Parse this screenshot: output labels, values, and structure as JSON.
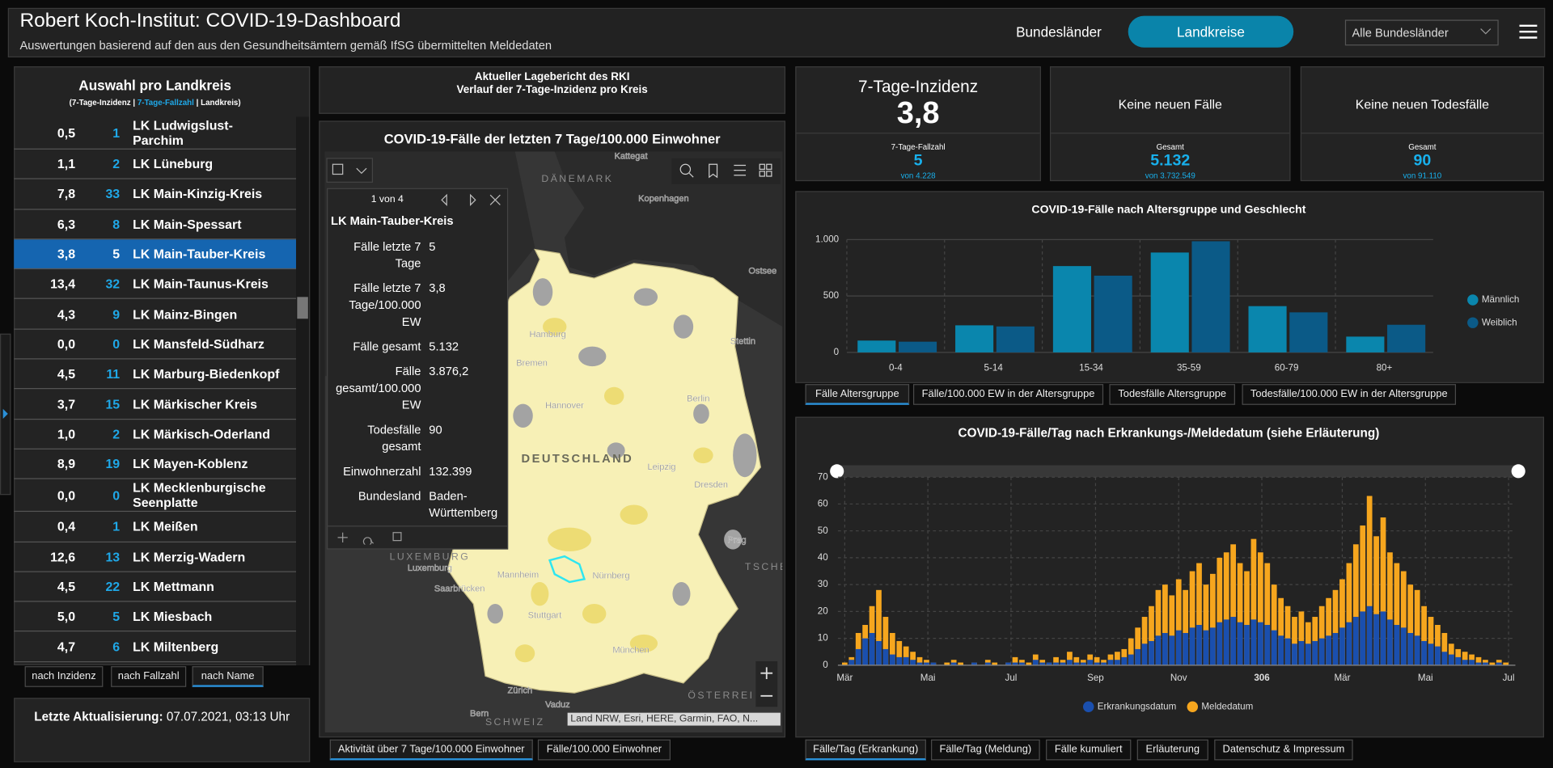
{
  "header": {
    "title": "Robert Koch-Institut: COVID-19-Dashboard",
    "subtitle": "Auswertungen basierend auf den aus den Gesundheitsämtern gemäß IfSG übermittelten Meldedaten",
    "tabs": [
      "Bundesländer",
      "Landkreise"
    ],
    "active_tab": 1,
    "dropdown": "Alle Bundesländer"
  },
  "district_list": {
    "title": "Auswahl pro Landkreis",
    "legend": [
      "(7-Tage-Inzidenz |",
      "7-Tage-Fallzahl",
      "| Landkreis)"
    ],
    "rows": [
      [
        "0,5",
        "1",
        "LK Ludwigslust-Parchim"
      ],
      [
        "1,1",
        "2",
        "LK Lüneburg"
      ],
      [
        "7,8",
        "33",
        "LK Main-Kinzig-Kreis"
      ],
      [
        "6,3",
        "8",
        "LK Main-Spessart"
      ],
      [
        "3,8",
        "5",
        "LK Main-Tauber-Kreis"
      ],
      [
        "13,4",
        "32",
        "LK Main-Taunus-Kreis"
      ],
      [
        "4,3",
        "9",
        "LK Mainz-Bingen"
      ],
      [
        "0,0",
        "0",
        "LK Mansfeld-Südharz"
      ],
      [
        "4,5",
        "11",
        "LK Marburg-Biedenkopf"
      ],
      [
        "3,7",
        "15",
        "LK Märkischer Kreis"
      ],
      [
        "1,0",
        "2",
        "LK Märkisch-Oderland"
      ],
      [
        "8,9",
        "19",
        "LK Mayen-Koblenz"
      ],
      [
        "0,0",
        "0",
        "LK Mecklenburgische Seenplatte"
      ],
      [
        "0,4",
        "1",
        "LK Meißen"
      ],
      [
        "12,6",
        "13",
        "LK Merzig-Wadern"
      ],
      [
        "4,5",
        "22",
        "LK Mettmann"
      ],
      [
        "5,0",
        "5",
        "LK Miesbach"
      ],
      [
        "4,7",
        "6",
        "LK Miltenberg"
      ]
    ],
    "selected_row": 4,
    "sort_buttons": [
      "nach Inzidenz",
      "nach Fallzahl",
      "nach Name"
    ],
    "active_sort": 2
  },
  "update": {
    "label": "Letzte Aktualisierung:",
    "value": "07.07.2021, 03:13 Uhr"
  },
  "report": {
    "lines": [
      "Aktueller Lagebericht des RKI",
      "Verlauf der 7-Tage-Inzidenz pro Kreis"
    ]
  },
  "map": {
    "title": "COVID-19-Fälle der letzten 7 Tage/100.000 Einwohner",
    "labels": [
      "Kattegat",
      "DÄNEMARK",
      "Kopenhagen",
      "Ostsee",
      "Hamburg",
      "Bremen",
      "Hannover",
      "Stettin",
      "Berlin",
      "DEUTSCHLAND",
      "Leipzig",
      "Dresden",
      "Prag",
      "TSCHE",
      "LUXEMBURG",
      "Luxemburg",
      "Saarbrücken",
      "Mannheim",
      "Nürnberg",
      "Stuttgart",
      "München",
      "ÖSTERREI",
      "Zürich",
      "Vaduz",
      "Bern",
      "SCHWEIZ"
    ],
    "popup": {
      "pager": "1 von 4",
      "title": "LK Main-Tauber-Kreis",
      "fields": [
        [
          "Fälle letzte 7 Tage",
          "5"
        ],
        [
          "Fälle letzte 7 Tage/100.000 EW",
          "3,8"
        ],
        [
          "Fälle gesamt",
          "5.132"
        ],
        [
          "Fälle gesamt/100.000 EW",
          "3.876,2"
        ],
        [
          "Todesfälle gesamt",
          "90"
        ],
        [
          "Einwohnerzahl",
          "132.399"
        ],
        [
          "Bundesland",
          "Baden-Württemberg"
        ]
      ]
    },
    "attribution": "Land NRW, Esri, HERE, Garmin, FAO, N...",
    "tabs": [
      "Aktivität über 7 Tage/100.000 Einwohner",
      "Fälle/100.000 Einwohner"
    ],
    "active_tab": 0
  },
  "kpis": [
    {
      "title": "7-Tage-Inzidenz",
      "value": "3,8",
      "sub_label": "7-Tage-Fallzahl",
      "sub_value": "5",
      "sub_total": "von 4.228"
    },
    {
      "title": "Keine neuen Fälle",
      "sub_label": "Gesamt",
      "sub_value": "5.132",
      "sub_total": "von 3.732.549"
    },
    {
      "title": "Keine neuen Todesfälle",
      "sub_label": "Gesamt",
      "sub_value": "90",
      "sub_total": "von 91.110"
    }
  ],
  "age_chart_tabs": {
    "tabs": [
      "Fälle Altersgruppe",
      "Fälle/100.000 EW in der Altersgruppe",
      "Todesfälle Altersgruppe",
      "Todesfälle/100.000 EW in der Altersgruppe"
    ],
    "active_tab": 0
  },
  "daily_chart_tabs": {
    "tabs": [
      "Fälle/Tag (Erkrankung)",
      "Fälle/Tag (Meldung)",
      "Fälle kumuliert",
      "Erläuterung",
      "Datenschutz & Impressum"
    ],
    "active_tab": 0
  },
  "chart_data": [
    {
      "type": "bar",
      "title": "COVID-19-Fälle nach Altersgruppe und Geschlecht",
      "categories": [
        "0-4",
        "5-14",
        "15-34",
        "35-59",
        "60-79",
        "80+"
      ],
      "series": [
        {
          "name": "Männlich",
          "color": "#0a86ad",
          "values": [
            105,
            240,
            765,
            885,
            410,
            140
          ]
        },
        {
          "name": "Weiblich",
          "color": "#0b5a87",
          "values": [
            95,
            230,
            680,
            985,
            355,
            245
          ]
        }
      ],
      "ylim": [
        0,
        1000
      ],
      "yticks": [
        0,
        500,
        {
          "value": 1000,
          "label": "1.000"
        }
      ],
      "grid": true,
      "legend": "right"
    },
    {
      "type": "bar",
      "title": "COVID-19-Fälle/Tag nach Erkrankungs-/Meldedatum (siehe Erläuterung)",
      "x": [
        0,
        5,
        10,
        15,
        20,
        25,
        30,
        35,
        40,
        45,
        50,
        55,
        60,
        65,
        70,
        75,
        80,
        85,
        90,
        95,
        100,
        105,
        110,
        115,
        120,
        125,
        130,
        135,
        140,
        145,
        150,
        155,
        160,
        165,
        170,
        175,
        180,
        185,
        190,
        195,
        200,
        205,
        210,
        215,
        220,
        225,
        230,
        235,
        240,
        245,
        250,
        255,
        260,
        265,
        270,
        275,
        280,
        285,
        290,
        295,
        300,
        305,
        310,
        315,
        320,
        325,
        330,
        335,
        340,
        345,
        350,
        355,
        360,
        365,
        370,
        375,
        380,
        385,
        390,
        395,
        400,
        405,
        410,
        415,
        420,
        425,
        430,
        435,
        440,
        445,
        450,
        455,
        460,
        465,
        470,
        475,
        480,
        485
      ],
      "series": [
        {
          "name": "Erkrankungsdatum",
          "color": "#1a4fae",
          "values": [
            0,
            2,
            6,
            10,
            12,
            9,
            6,
            4,
            3,
            3,
            2,
            1,
            1,
            1,
            0,
            0,
            1,
            0,
            0,
            1,
            0,
            1,
            0,
            0,
            1,
            1,
            1,
            0,
            2,
            1,
            1,
            1,
            1,
            2,
            1,
            1,
            2,
            1,
            1,
            2,
            2,
            3,
            4,
            6,
            8,
            9,
            11,
            12,
            11,
            13,
            12,
            14,
            15,
            13,
            14,
            16,
            17,
            18,
            16,
            15,
            17,
            16,
            15,
            13,
            11,
            10,
            8,
            9,
            8,
            9,
            10,
            11,
            12,
            14,
            16,
            18,
            20,
            22,
            19,
            20,
            17,
            15,
            14,
            12,
            11,
            9,
            8,
            7,
            5,
            4,
            3,
            2,
            2,
            1,
            1,
            0,
            1,
            0
          ]
        },
        {
          "name": "Meldedatum",
          "color": "#f6a61e",
          "values": [
            1,
            3,
            12,
            15,
            22,
            28,
            18,
            12,
            9,
            7,
            5,
            3,
            2,
            1,
            0,
            1,
            2,
            1,
            0,
            1,
            0,
            2,
            1,
            0,
            1,
            3,
            2,
            1,
            4,
            2,
            1,
            3,
            2,
            5,
            3,
            2,
            4,
            3,
            2,
            4,
            5,
            6,
            10,
            14,
            18,
            22,
            28,
            30,
            26,
            32,
            28,
            35,
            38,
            30,
            34,
            40,
            42,
            45,
            38,
            35,
            47,
            42,
            38,
            30,
            25,
            22,
            18,
            20,
            16,
            18,
            22,
            25,
            28,
            32,
            38,
            45,
            52,
            63,
            48,
            55,
            42,
            38,
            35,
            30,
            28,
            22,
            18,
            15,
            12,
            8,
            6,
            5,
            4,
            3,
            2,
            1,
            2,
            1
          ]
        }
      ],
      "xlim": [
        -5,
        492
      ],
      "xticks": [
        {
          "value": 0,
          "label": "Mär"
        },
        {
          "value": 61,
          "label": "Mai"
        },
        {
          "value": 122,
          "label": "Jul"
        },
        {
          "value": 184,
          "label": "Sep"
        },
        {
          "value": 245,
          "label": "Nov"
        },
        306,
        {
          "value": 365,
          "label": "Mär"
        },
        {
          "value": 426,
          "label": "Mai"
        },
        {
          "value": 487,
          "label": "Jul"
        }
      ],
      "ylim": [
        0,
        70
      ],
      "yticks": [
        0,
        10,
        20,
        30,
        40,
        50,
        60,
        70
      ],
      "grid": true,
      "legend": "bottom"
    }
  ]
}
